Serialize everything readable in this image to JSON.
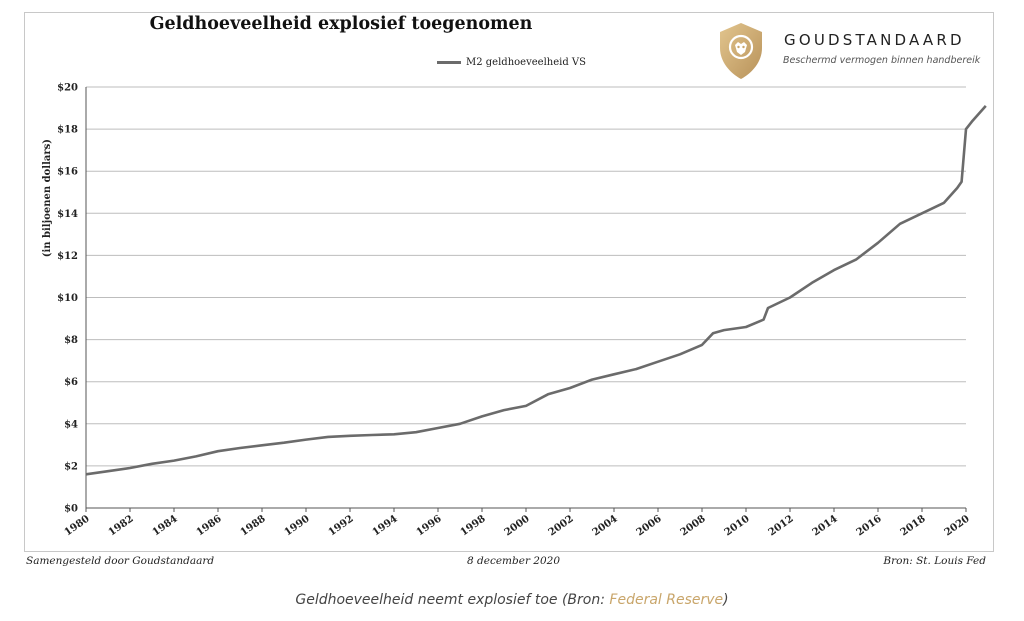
{
  "header": {
    "brand_name": "GOUDSTANDAARD",
    "tagline": "Beschermd vermogen binnen handbereik",
    "logo_icon": "lion-shield-icon",
    "accent_color": "#c9a66b"
  },
  "footer": {
    "left": "Samengesteld door Goudstandaard",
    "center": "8 december 2020",
    "right": "Bron: St. Louis Fed"
  },
  "caption": {
    "prefix": "Geldhoeveelheid neemt explosief toe (Bron: ",
    "source": "Federal Reserve",
    "suffix": ")"
  },
  "chart_data": {
    "type": "line",
    "title": "Geldhoeveelheid explosief toegenomen",
    "xlabel": "",
    "ylabel": "(in biljoenen dollars)",
    "xlim": [
      1980,
      2020
    ],
    "ylim": [
      0,
      20
    ],
    "grid": true,
    "legend_position": "top-center",
    "line_color": "#6b6b6b",
    "x_ticks": [
      "1980",
      "1982",
      "1984",
      "1986",
      "1988",
      "1990",
      "1992",
      "1994",
      "1996",
      "1998",
      "2000",
      "2002",
      "2004",
      "2006",
      "2008",
      "2010",
      "2012",
      "2014",
      "2016",
      "2018",
      "2020"
    ],
    "y_ticks": [
      "$0",
      "$2",
      "$4",
      "$6",
      "$8",
      "$10",
      "$12",
      "$14",
      "$16",
      "$18",
      "$20"
    ],
    "series": [
      {
        "name": "M2 geldhoeveelheid VS",
        "x": [
          1980,
          1981,
          1982,
          1983,
          1984,
          1985,
          1986,
          1987,
          1988,
          1989,
          1990,
          1991,
          1992,
          1993,
          1994,
          1995,
          1996,
          1997,
          1998,
          1999,
          2000,
          2001,
          2002,
          2003,
          2004,
          2005,
          2006,
          2007,
          2008,
          2008.5,
          2009,
          2010,
          2010.8,
          2011,
          2012,
          2013,
          2014,
          2015,
          2016,
          2017,
          2018,
          2019,
          2019.6,
          2019.8,
          2020,
          2020.3,
          2020.9
        ],
        "y": [
          1.6,
          1.75,
          1.9,
          2.1,
          2.25,
          2.45,
          2.7,
          2.85,
          2.98,
          3.1,
          3.25,
          3.38,
          3.43,
          3.47,
          3.5,
          3.6,
          3.8,
          4.0,
          4.35,
          4.65,
          4.85,
          5.4,
          5.7,
          6.1,
          6.35,
          6.6,
          6.95,
          7.3,
          7.75,
          8.3,
          8.45,
          8.6,
          8.95,
          9.5,
          10.0,
          10.7,
          11.3,
          11.8,
          12.6,
          13.5,
          14.0,
          14.5,
          15.2,
          15.5,
          18.0,
          18.4,
          19.1
        ]
      }
    ]
  }
}
